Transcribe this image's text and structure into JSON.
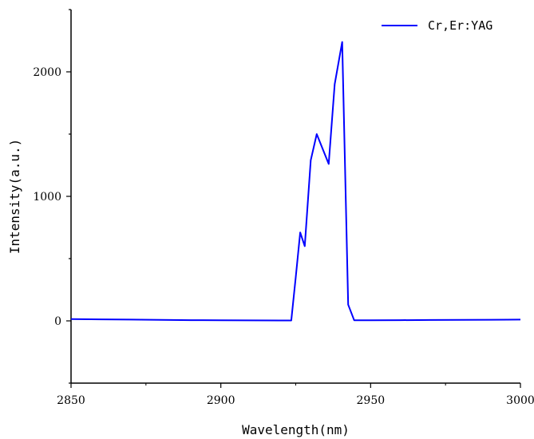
{
  "chart_data": {
    "type": "line",
    "title": "",
    "xlabel": "Wavelength(nm)",
    "ylabel": "Intensity(a.u.)",
    "xlim": [
      2850,
      3000
    ],
    "ylim": [
      -500,
      2500
    ],
    "x_ticks": [
      2850,
      2900,
      2950,
      3000
    ],
    "x_tick_labels": [
      "2850",
      "2900",
      "2950",
      "3000"
    ],
    "y_ticks": [
      0,
      1000,
      2000
    ],
    "y_tick_labels": [
      "0",
      "1000",
      "2000"
    ],
    "grid": false,
    "legend": {
      "placement": "top-right",
      "entries": [
        "Cr,Er:YAG"
      ]
    },
    "series": [
      {
        "name": "Cr,Er:YAG",
        "color": "#0000ff",
        "x": [
          2850,
          2860,
          2870,
          2880,
          2890,
          2900,
          2910,
          2920,
          2923.5,
          2925,
          2926.5,
          2928,
          2930,
          2932,
          2936,
          2938,
          2940.5,
          2942.5,
          2944.5,
          2950,
          2960,
          2970,
          2980,
          2990,
          3000
        ],
        "y": [
          15,
          12,
          10,
          8,
          6,
          5,
          4,
          3,
          3,
          350,
          710,
          600,
          1290,
          1500,
          1260,
          1900,
          2240,
          130,
          5,
          5,
          6,
          7,
          8,
          9,
          10
        ]
      }
    ]
  }
}
